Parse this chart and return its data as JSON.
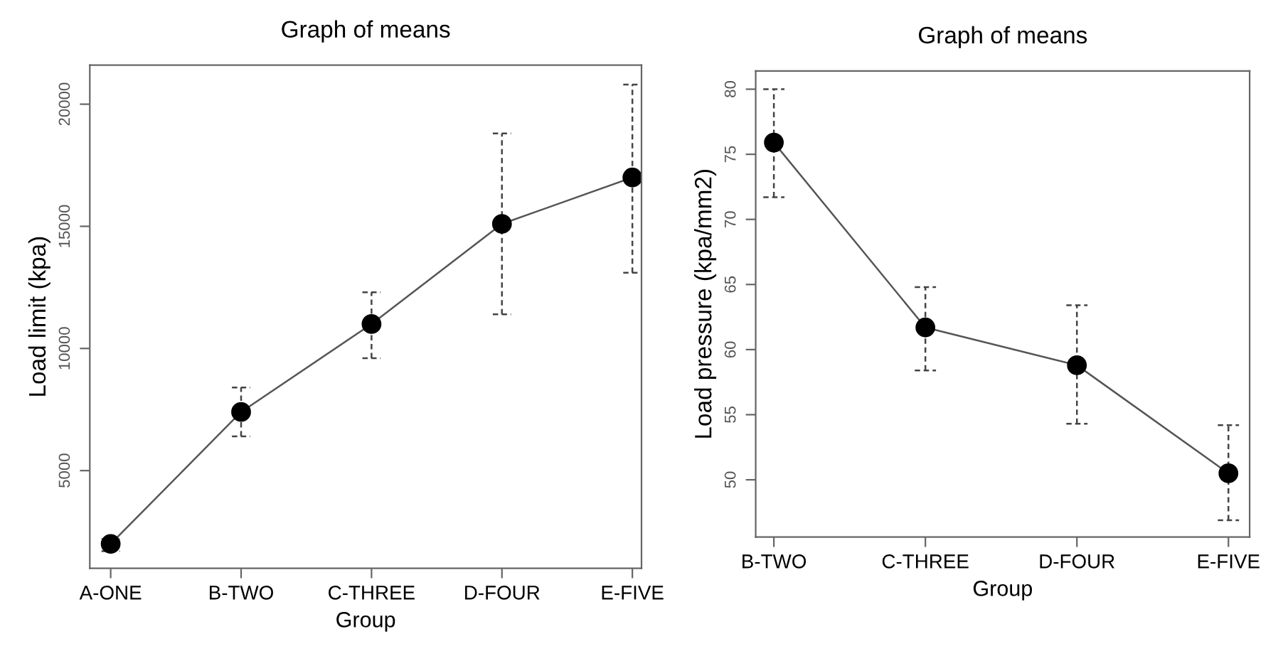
{
  "chart_data": [
    {
      "type": "line",
      "title": "Graph of means",
      "xlabel": "Group",
      "ylabel": "Load limit (kpa)",
      "categories": [
        "A-ONE",
        "B-TWO",
        "C-THREE",
        "D-FOUR",
        "E-FIVE"
      ],
      "ylim": [
        1000,
        21600
      ],
      "yticks": [
        5000,
        10000,
        15000,
        20000
      ],
      "marker": "circle",
      "line_style": "solid",
      "grid": false,
      "legend": false,
      "series": [
        {
          "color": "#000000",
          "values": [
            2000,
            7400,
            11000,
            15100,
            17000
          ],
          "errors": [
            [
              1700,
              2200
            ],
            [
              6400,
              8400
            ],
            [
              9600,
              12300
            ],
            [
              11400,
              18800
            ],
            [
              13100,
              20800
            ]
          ]
        }
      ]
    },
    {
      "type": "line",
      "title": "Graph of means",
      "xlabel": "Group",
      "ylabel": "Load pressure (kpa/mm2)",
      "categories": [
        "B-TWO",
        "C-THREE",
        "D-FOUR",
        "E-FIVE"
      ],
      "ylim": [
        45.6,
        81.4
      ],
      "yticks": [
        50,
        55,
        60,
        65,
        70,
        75,
        80
      ],
      "marker": "circle",
      "line_style": "solid",
      "grid": false,
      "legend": false,
      "series": [
        {
          "color": "#000000",
          "values": [
            75.9,
            61.7,
            58.8,
            50.5
          ],
          "errors": [
            [
              71.7,
              80
            ],
            [
              58.4,
              64.8
            ],
            [
              54.3,
              63.4
            ],
            [
              46.9,
              54.2
            ]
          ]
        }
      ]
    }
  ]
}
